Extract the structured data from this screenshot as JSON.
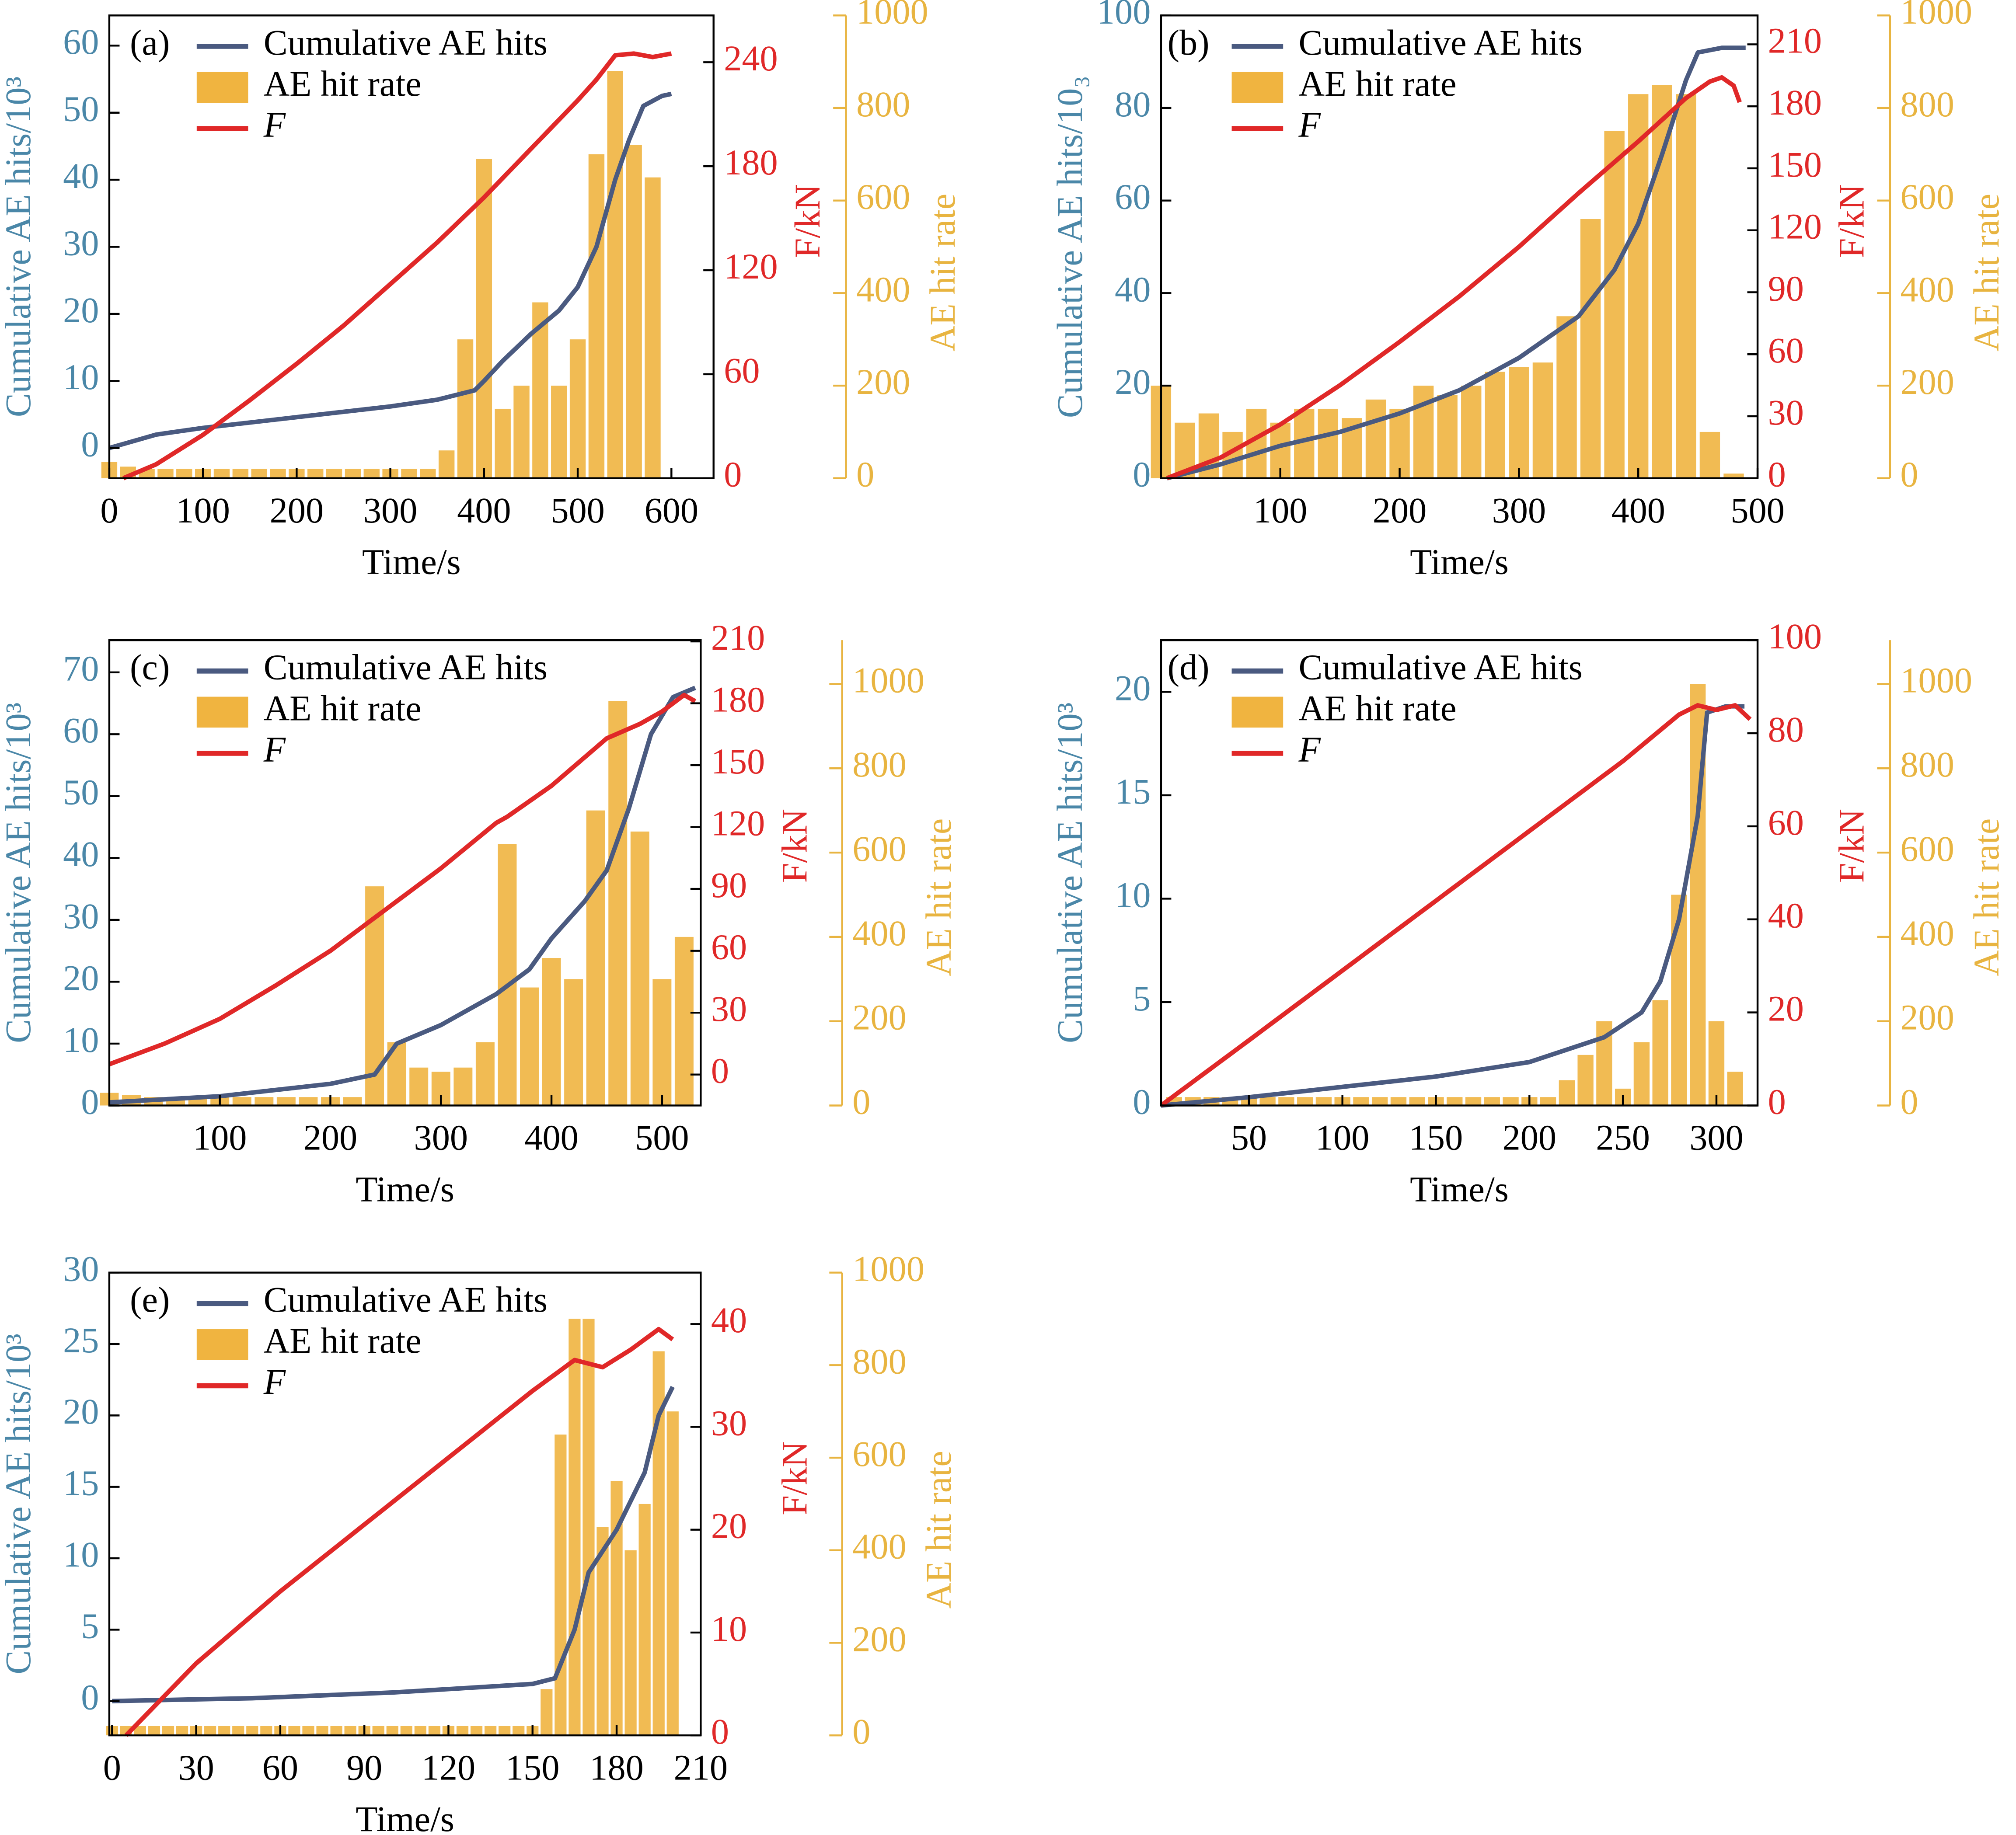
{
  "chart_data": [
    {
      "type": "combo",
      "label": "(a)",
      "xlabel": "Time/s",
      "ylabel": "Cumulative AE hits/10³",
      "y2label": "F/kN",
      "y3label": "AE hit rate",
      "xlim": [
        0,
        645
      ],
      "xticks": [
        0,
        100,
        200,
        300,
        400,
        500,
        600
      ],
      "ylim": [
        -4.5,
        64.5
      ],
      "yticks": [
        0,
        10,
        20,
        30,
        40,
        50,
        60
      ],
      "y2lim": [
        0,
        267
      ],
      "y2ticks": [
        0,
        60,
        120,
        180,
        240
      ],
      "y3lim": [
        0,
        1000
      ],
      "y3ticks": [
        0,
        200,
        400,
        600,
        800,
        1000
      ],
      "series": [
        {
          "name": "Cumulative AE hits",
          "type": "line",
          "color": "#4a5a80",
          "x": [
            0,
            50,
            100,
            150,
            200,
            250,
            300,
            350,
            390,
            400,
            420,
            450,
            480,
            500,
            520,
            540,
            555,
            570,
            590,
            600
          ],
          "values": [
            0,
            2,
            3,
            3.8,
            4.6,
            5.4,
            6.2,
            7.2,
            8.6,
            10,
            13,
            17,
            20.5,
            24,
            30,
            40,
            46,
            51,
            52.5,
            52.8
          ]
        },
        {
          "name": "AE hit rate",
          "type": "bar",
          "axis": "y3",
          "color": "#f0b440",
          "x": [
            0,
            20,
            40,
            60,
            80,
            100,
            120,
            140,
            160,
            180,
            200,
            220,
            240,
            260,
            280,
            300,
            320,
            340,
            360,
            380,
            400,
            420,
            440,
            460,
            480,
            500,
            520,
            540,
            560,
            580
          ],
          "values": [
            35,
            25,
            20,
            20,
            20,
            20,
            20,
            20,
            20,
            20,
            20,
            20,
            20,
            20,
            20,
            20,
            20,
            20,
            60,
            300,
            690,
            150,
            200,
            380,
            200,
            300,
            700,
            880,
            720,
            650
          ]
        },
        {
          "name": "F",
          "type": "line",
          "axis": "y2",
          "color": "#e02828",
          "x": [
            15,
            50,
            100,
            150,
            200,
            250,
            300,
            350,
            400,
            450,
            500,
            520,
            540,
            560,
            580,
            600
          ],
          "values": [
            0,
            8,
            25,
            45,
            66,
            88,
            112,
            136,
            162,
            190,
            218,
            230,
            244,
            245,
            243,
            245
          ]
        }
      ]
    },
    {
      "type": "combo",
      "label": "(b)",
      "xlabel": "Time/s",
      "ylabel": "Cumulative AE hits/10₃",
      "y2label": "F/kN",
      "y3label": "AE hit rate",
      "xlim": [
        0,
        500
      ],
      "xticks": [
        100,
        200,
        300,
        400,
        500
      ],
      "ylim": [
        0,
        100
      ],
      "yticks": [
        0,
        20,
        40,
        60,
        80,
        100
      ],
      "y2lim": [
        0,
        224
      ],
      "y2ticks": [
        0,
        30,
        60,
        90,
        120,
        150,
        180,
        210
      ],
      "y3lim": [
        0,
        1000
      ],
      "y3ticks": [
        0,
        200,
        400,
        600,
        800,
        1000
      ],
      "series": [
        {
          "name": "Cumulative AE hits",
          "type": "line",
          "color": "#4a5a80",
          "x": [
            5,
            50,
            100,
            150,
            200,
            250,
            300,
            350,
            380,
            400,
            420,
            440,
            450,
            470,
            490
          ],
          "values": [
            0,
            3,
            7,
            10,
            14,
            19,
            26,
            35,
            45,
            55,
            70,
            86,
            92,
            93,
            93
          ]
        },
        {
          "name": "AE hit rate",
          "type": "bar",
          "axis": "y3",
          "color": "#f0b440",
          "x": [
            0,
            20,
            40,
            60,
            80,
            100,
            120,
            140,
            160,
            180,
            200,
            220,
            240,
            260,
            280,
            300,
            320,
            340,
            360,
            380,
            400,
            420,
            440,
            460,
            480
          ],
          "values": [
            200,
            120,
            140,
            100,
            150,
            120,
            150,
            150,
            130,
            170,
            150,
            200,
            180,
            200,
            230,
            240,
            250,
            350,
            560,
            750,
            830,
            850,
            830,
            100,
            10
          ]
        },
        {
          "name": "F",
          "type": "line",
          "axis": "y2",
          "color": "#e02828",
          "x": [
            5,
            50,
            100,
            150,
            200,
            250,
            300,
            350,
            400,
            440,
            460,
            470,
            480,
            485
          ],
          "values": [
            0,
            10,
            26,
            45,
            66,
            88,
            112,
            138,
            163,
            184,
            192,
            194,
            190,
            182
          ]
        }
      ]
    },
    {
      "type": "combo",
      "label": "(c)",
      "xlabel": "Time/s",
      "ylabel": "Cumulative AE hits/10³",
      "y2label": "F/kN",
      "y3label": "AE hit rate",
      "xlim": [
        0,
        535
      ],
      "xticks": [
        100,
        200,
        300,
        400,
        500
      ],
      "ylim": [
        0,
        75.2
      ],
      "yticks": [
        0,
        10,
        20,
        30,
        40,
        50,
        60,
        70
      ],
      "y2lim": [
        -15,
        210.6
      ],
      "y2ticks": [
        0,
        30,
        60,
        90,
        120,
        150,
        180,
        210
      ],
      "y3lim": [
        0,
        1104
      ],
      "y3ticks": [
        0,
        200,
        400,
        600,
        800,
        1000
      ],
      "series": [
        {
          "name": "Cumulative AE hits",
          "type": "line",
          "color": "#4a5a80",
          "x": [
            0,
            100,
            200,
            240,
            260,
            300,
            350,
            380,
            400,
            430,
            450,
            470,
            490,
            510,
            530
          ],
          "values": [
            0.5,
            1.5,
            3.5,
            5,
            10,
            13,
            18,
            22,
            27,
            33,
            38,
            48,
            60,
            66,
            67.5
          ]
        },
        {
          "name": "AE hit rate",
          "type": "bar",
          "axis": "y3",
          "color": "#f0b440",
          "x": [
            0,
            20,
            40,
            60,
            80,
            100,
            120,
            140,
            160,
            180,
            200,
            220,
            240,
            260,
            280,
            300,
            320,
            340,
            360,
            380,
            400,
            420,
            440,
            460,
            480,
            500,
            520
          ],
          "values": [
            30,
            25,
            20,
            20,
            20,
            20,
            20,
            20,
            20,
            20,
            20,
            20,
            520,
            150,
            90,
            80,
            90,
            150,
            620,
            280,
            350,
            300,
            700,
            960,
            650,
            300,
            400
          ]
        },
        {
          "name": "F",
          "type": "line",
          "axis": "y2",
          "color": "#e02828",
          "x": [
            0,
            50,
            100,
            150,
            200,
            250,
            300,
            350,
            360,
            400,
            450,
            480,
            500,
            520,
            530
          ],
          "values": [
            5,
            15,
            27,
            43,
            60,
            80,
            100,
            122,
            125,
            140,
            163,
            170,
            176,
            184,
            181
          ]
        }
      ]
    },
    {
      "type": "combo",
      "label": "(d)",
      "xlabel": "Time/s",
      "ylabel": "Cumulative AE hits/10³",
      "y2label": "F/kN",
      "y3label": "AE hit rate",
      "xlim": [
        3,
        322
      ],
      "xticks": [
        50,
        100,
        150,
        200,
        250,
        300
      ],
      "ylim": [
        0,
        22.5
      ],
      "yticks": [
        0,
        5,
        10,
        15,
        20
      ],
      "y2lim": [
        0,
        100
      ],
      "y2ticks": [
        0,
        20,
        40,
        60,
        80,
        100
      ],
      "y3lim": [
        0,
        1104
      ],
      "y3ticks": [
        0,
        200,
        400,
        600,
        800,
        1000
      ],
      "series": [
        {
          "name": "Cumulative AE hits",
          "type": "line",
          "color": "#4a5a80",
          "x": [
            3,
            50,
            100,
            150,
            200,
            240,
            260,
            270,
            280,
            290,
            295,
            305,
            315
          ],
          "values": [
            0,
            0.4,
            0.9,
            1.4,
            2.1,
            3.3,
            4.5,
            6,
            9,
            14,
            19,
            19.3,
            19.3
          ]
        },
        {
          "name": "AE hit rate",
          "type": "bar",
          "axis": "y3",
          "color": "#f0b440",
          "x": [
            10,
            20,
            30,
            40,
            50,
            60,
            70,
            80,
            90,
            100,
            110,
            120,
            130,
            140,
            150,
            160,
            170,
            180,
            190,
            200,
            210,
            220,
            230,
            240,
            250,
            260,
            270,
            280,
            290,
            300,
            310
          ],
          "values": [
            20,
            20,
            20,
            20,
            20,
            20,
            20,
            20,
            20,
            20,
            20,
            20,
            20,
            20,
            20,
            20,
            20,
            20,
            20,
            20,
            20,
            60,
            120,
            200,
            40,
            150,
            250,
            500,
            1000,
            200,
            80
          ]
        },
        {
          "name": "F",
          "type": "line",
          "axis": "y2",
          "color": "#e02828",
          "x": [
            3,
            50,
            100,
            150,
            200,
            250,
            280,
            290,
            300,
            310,
            318
          ],
          "values": [
            0,
            14,
            29,
            44,
            59,
            74,
            84,
            86,
            85,
            86,
            83
          ]
        }
      ]
    },
    {
      "type": "combo",
      "label": "(e)",
      "xlabel": "Time/s",
      "ylabel": "Cumulative AE hits/10³",
      "y2label": "F/kN",
      "y3label": "AE hit rate",
      "xlim": [
        -1,
        210
      ],
      "xticks": [
        0,
        30,
        60,
        90,
        120,
        150,
        180,
        210
      ],
      "ylim": [
        -2.4,
        30
      ],
      "yticks": [
        0,
        5,
        10,
        15,
        20,
        25,
        30
      ],
      "y2lim": [
        0,
        45
      ],
      "y2ticks": [
        0,
        10,
        20,
        30,
        40
      ],
      "y3lim": [
        0,
        1000
      ],
      "y3ticks": [
        0,
        200,
        400,
        600,
        800,
        1000
      ],
      "series": [
        {
          "name": "Cumulative AE hits",
          "type": "line",
          "color": "#4a5a80",
          "x": [
            0,
            50,
            100,
            150,
            158,
            165,
            170,
            180,
            190,
            195,
            200
          ],
          "values": [
            0,
            0.2,
            0.6,
            1.2,
            1.6,
            5,
            9,
            12,
            16,
            20,
            22
          ]
        },
        {
          "name": "AE hit rate",
          "type": "bar",
          "axis": "y3",
          "color": "#f0b440",
          "x": [
            0,
            5,
            10,
            15,
            20,
            25,
            30,
            35,
            40,
            45,
            50,
            55,
            60,
            65,
            70,
            75,
            80,
            85,
            90,
            95,
            100,
            105,
            110,
            115,
            120,
            125,
            130,
            135,
            140,
            145,
            150,
            155,
            160,
            165,
            170,
            175,
            180,
            185,
            190,
            195,
            200
          ],
          "values": [
            20,
            20,
            20,
            20,
            20,
            20,
            20,
            20,
            20,
            20,
            20,
            20,
            20,
            20,
            20,
            20,
            20,
            20,
            20,
            20,
            20,
            20,
            20,
            20,
            20,
            20,
            20,
            20,
            20,
            20,
            20,
            100,
            650,
            900,
            900,
            450,
            550,
            400,
            500,
            830,
            700
          ]
        },
        {
          "name": "F",
          "type": "line",
          "axis": "y2",
          "color": "#e02828",
          "x": [
            5,
            30,
            60,
            90,
            120,
            150,
            165,
            175,
            185,
            195,
            200
          ],
          "values": [
            0,
            7,
            14,
            20.5,
            27,
            33.5,
            36.5,
            35.8,
            37.5,
            39.5,
            38.5
          ]
        }
      ]
    }
  ]
}
